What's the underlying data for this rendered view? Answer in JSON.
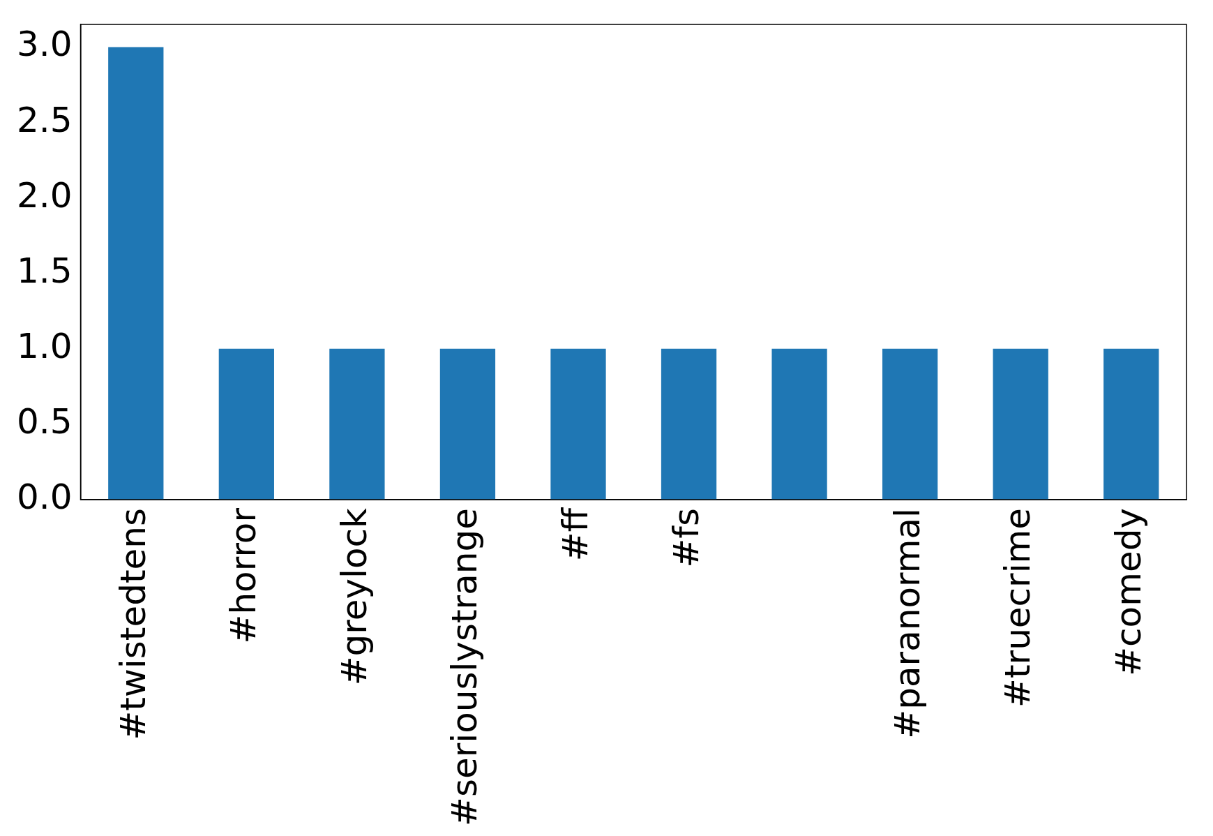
{
  "chart_data": {
    "type": "bar",
    "categories": [
      "#twistedtens",
      "#horror",
      "#greylock",
      "#seriouslystrange",
      "#ff",
      "#fs",
      null,
      "#paranormal",
      "#truecrime",
      "#comedy"
    ],
    "values": [
      3,
      1,
      1,
      1,
      1,
      1,
      1,
      1,
      1,
      1
    ],
    "color": "#1f77b4",
    "ylim": [
      0,
      3.15
    ],
    "yticks": [
      {
        "value": 0,
        "label": "0.0"
      },
      {
        "value": 0.5,
        "label": "0.5"
      },
      {
        "value": 1,
        "label": "1.0"
      },
      {
        "value": 1.5,
        "label": "1.5"
      },
      {
        "value": 2,
        "label": "2.0"
      },
      {
        "value": 2.5,
        "label": "2.5"
      },
      {
        "value": 3,
        "label": "3.0"
      }
    ],
    "grid": false,
    "legend": false
  }
}
